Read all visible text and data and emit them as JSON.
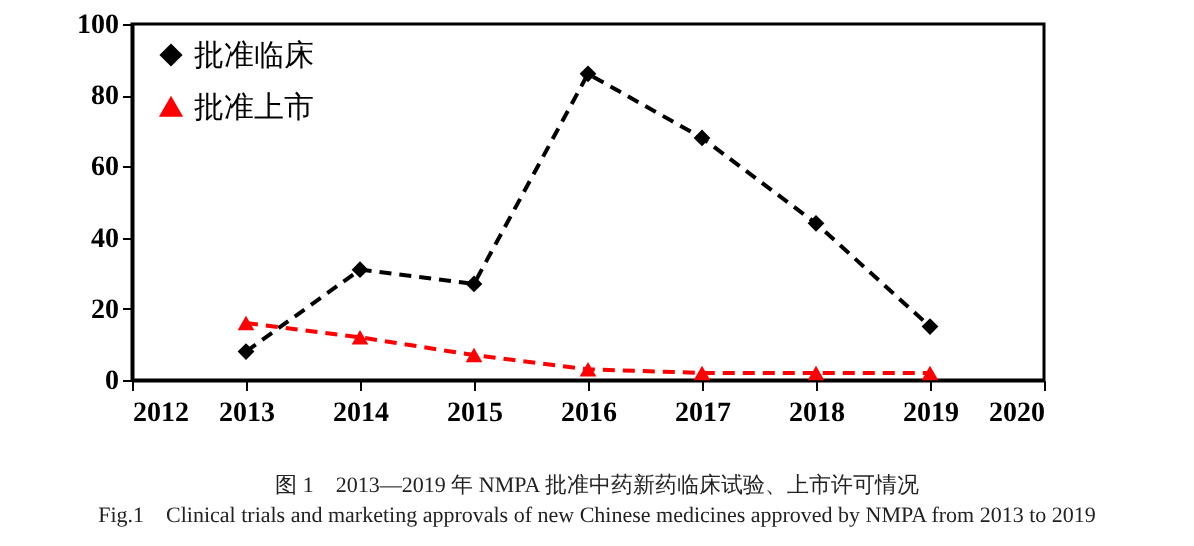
{
  "chart_data": {
    "type": "line",
    "x": [
      2013,
      2014,
      2015,
      2016,
      2017,
      2018,
      2019
    ],
    "series": [
      {
        "name": "批准临床",
        "color": "#000000",
        "marker": "diamond",
        "values": [
          8,
          31,
          27,
          86,
          68,
          44,
          15
        ]
      },
      {
        "name": "批准上市",
        "color": "#ff0000",
        "marker": "triangle",
        "values": [
          16,
          12,
          7,
          3,
          2,
          2,
          2
        ]
      }
    ],
    "xlim": [
      2012,
      2020
    ],
    "xticks": [
      2012,
      2013,
      2014,
      2015,
      2016,
      2017,
      2018,
      2019,
      2020
    ],
    "ylim": [
      0,
      100
    ],
    "yticks": [
      0,
      20,
      40,
      60,
      80,
      100
    ],
    "grid": false,
    "legend": "top left",
    "line_style": "dashed",
    "annotations": [
      "图 1　2013—2019 年 NMPA 批准中药新药临床试验、上市许可情况",
      "Fig.1　Clinical trials and marketing approvals of new Chinese medicines approved by NMPA from 2013 to 2019"
    ]
  }
}
